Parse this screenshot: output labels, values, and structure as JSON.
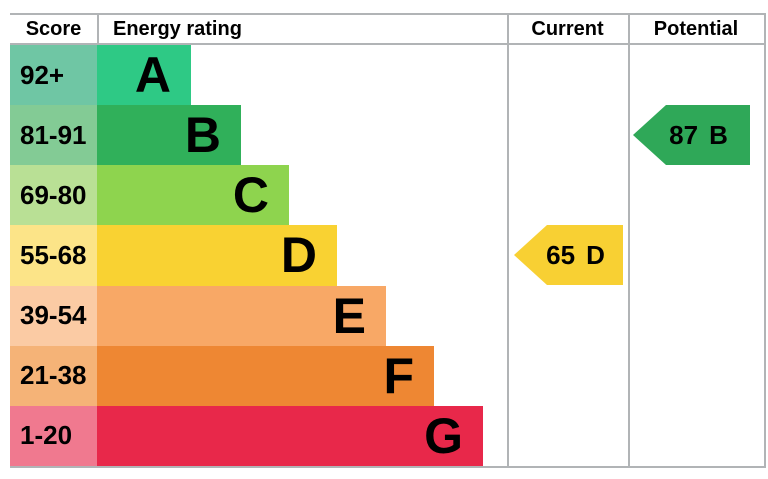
{
  "colors": {
    "divider": "#b1b4b6",
    "text": "#000000"
  },
  "header": {
    "score": "Score",
    "energy_rating": "Energy rating",
    "current": "Current",
    "potential": "Potential"
  },
  "bands": [
    {
      "letter": "A",
      "score": "92+",
      "bar_color": "#2ec985",
      "tint_color": "#6fc6a4"
    },
    {
      "letter": "B",
      "score": "81-91",
      "bar_color": "#30b05a",
      "tint_color": "#83cb95"
    },
    {
      "letter": "C",
      "score": "69-80",
      "bar_color": "#8ed44e",
      "tint_color": "#b9e095"
    },
    {
      "letter": "D",
      "score": "55-68",
      "bar_color": "#f9d232",
      "tint_color": "#fce488"
    },
    {
      "letter": "E",
      "score": "39-54",
      "bar_color": "#f8a866",
      "tint_color": "#fbcba4"
    },
    {
      "letter": "F",
      "score": "21-38",
      "bar_color": "#ee8733",
      "tint_color": "#f5b377"
    },
    {
      "letter": "G",
      "score": "1-20",
      "bar_color": "#e8284a",
      "tint_color": "#f0798f"
    }
  ],
  "current": {
    "value": "65",
    "letter": "D",
    "color": "#f8d033"
  },
  "potential": {
    "value": "87",
    "letter": "B",
    "color": "#2fa858"
  },
  "chart_data": {
    "type": "bar",
    "orientation": "horizontal",
    "title": "Energy rating",
    "categories": [
      "A",
      "B",
      "C",
      "D",
      "E",
      "F",
      "G"
    ],
    "score_ranges": [
      "92+",
      "81-91",
      "69-80",
      "55-68",
      "39-54",
      "21-38",
      "1-20"
    ],
    "bar_lengths_relative": [
      1,
      2,
      3,
      4,
      5,
      6,
      7
    ],
    "markers": [
      {
        "label": "Current",
        "score": 65,
        "rating": "D"
      },
      {
        "label": "Potential",
        "score": 87,
        "rating": "B"
      }
    ],
    "grid": false,
    "legend_position": "none"
  }
}
